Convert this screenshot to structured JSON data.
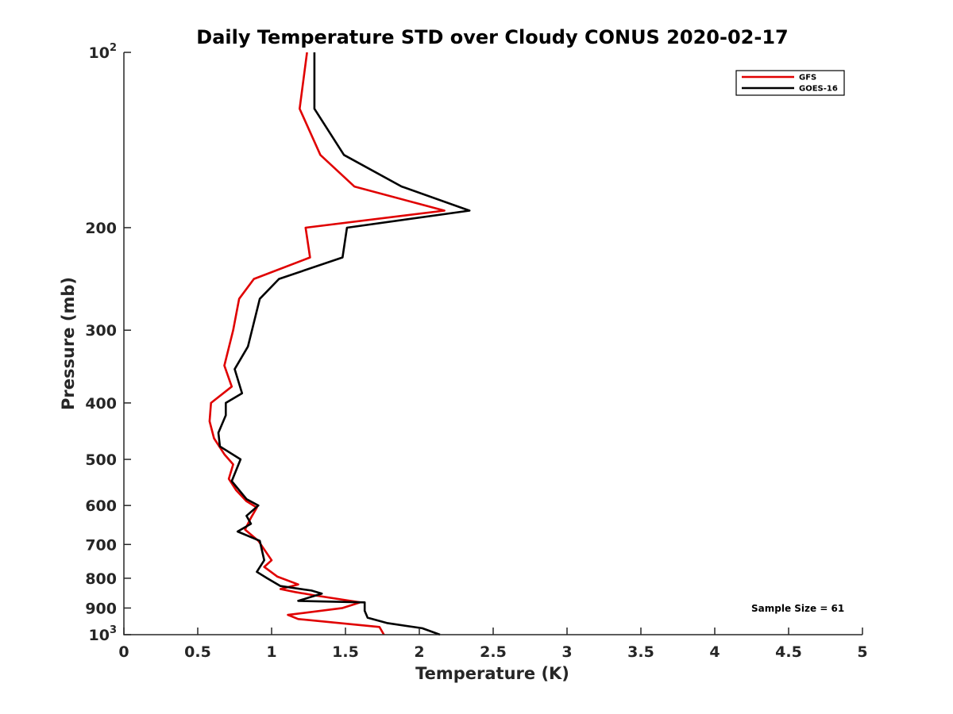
{
  "chart_data": {
    "type": "line",
    "title": "Daily Temperature STD over Cloudy CONUS 2020-02-17",
    "xlabel": "Temperature (K)",
    "ylabel": "Pressure (mb)",
    "xlim": [
      0,
      5
    ],
    "ylim": [
      100,
      1000
    ],
    "y_scale": "log",
    "y_reversed": true,
    "grid": false,
    "legend_position": "top-right",
    "x_ticks": [
      "0",
      "0.5",
      "1",
      "1.5",
      "2",
      "2.5",
      "3",
      "3.5",
      "4",
      "4.5",
      "5"
    ],
    "y_ticks": [
      {
        "value": 100,
        "base": "10",
        "exp": "2"
      },
      {
        "value": 200,
        "label": "200"
      },
      {
        "value": 300,
        "label": "300"
      },
      {
        "value": 400,
        "label": "400"
      },
      {
        "value": 500,
        "label": "500"
      },
      {
        "value": 600,
        "label": "600"
      },
      {
        "value": 700,
        "label": "700"
      },
      {
        "value": 800,
        "label": "800"
      },
      {
        "value": 900,
        "label": "900"
      },
      {
        "value": 1000,
        "base": "10",
        "exp": "3"
      }
    ],
    "annotation": "Sample Size = 61",
    "series": [
      {
        "name": "GFS",
        "color": "#e00000",
        "points": [
          [
            1.24,
            100
          ],
          [
            1.19,
            125
          ],
          [
            1.33,
            150
          ],
          [
            1.56,
            170
          ],
          [
            2.17,
            187
          ],
          [
            1.23,
            200
          ],
          [
            1.26,
            225
          ],
          [
            0.88,
            245
          ],
          [
            0.78,
            265
          ],
          [
            0.74,
            300
          ],
          [
            0.68,
            345
          ],
          [
            0.73,
            375
          ],
          [
            0.59,
            400
          ],
          [
            0.58,
            430
          ],
          [
            0.61,
            460
          ],
          [
            0.68,
            490
          ],
          [
            0.74,
            510
          ],
          [
            0.71,
            540
          ],
          [
            0.76,
            565
          ],
          [
            0.83,
            590
          ],
          [
            0.9,
            605
          ],
          [
            0.86,
            630
          ],
          [
            0.82,
            660
          ],
          [
            0.91,
            690
          ],
          [
            1.0,
            745
          ],
          [
            0.95,
            765
          ],
          [
            1.04,
            795
          ],
          [
            1.18,
            820
          ],
          [
            1.06,
            835
          ],
          [
            1.16,
            845
          ],
          [
            1.28,
            855
          ],
          [
            1.6,
            880
          ],
          [
            1.48,
            900
          ],
          [
            1.11,
            925
          ],
          [
            1.18,
            940
          ],
          [
            1.73,
            970
          ],
          [
            1.76,
            1000
          ]
        ]
      },
      {
        "name": "GOES-16",
        "color": "#000000",
        "points": [
          [
            1.29,
            100
          ],
          [
            1.29,
            125
          ],
          [
            1.49,
            150
          ],
          [
            1.88,
            170
          ],
          [
            2.34,
            187
          ],
          [
            1.51,
            200
          ],
          [
            1.48,
            225
          ],
          [
            1.05,
            245
          ],
          [
            0.92,
            265
          ],
          [
            0.84,
            320
          ],
          [
            0.75,
            350
          ],
          [
            0.8,
            385
          ],
          [
            0.69,
            400
          ],
          [
            0.69,
            420
          ],
          [
            0.64,
            450
          ],
          [
            0.65,
            475
          ],
          [
            0.79,
            500
          ],
          [
            0.73,
            545
          ],
          [
            0.83,
            585
          ],
          [
            0.91,
            600
          ],
          [
            0.83,
            625
          ],
          [
            0.86,
            645
          ],
          [
            0.77,
            665
          ],
          [
            0.92,
            690
          ],
          [
            0.95,
            745
          ],
          [
            0.9,
            780
          ],
          [
            0.97,
            800
          ],
          [
            1.06,
            825
          ],
          [
            1.27,
            840
          ],
          [
            1.34,
            850
          ],
          [
            1.18,
            875
          ],
          [
            1.63,
            880
          ],
          [
            1.63,
            910
          ],
          [
            1.65,
            935
          ],
          [
            1.78,
            955
          ],
          [
            2.02,
            975
          ],
          [
            2.14,
            1000
          ]
        ]
      }
    ]
  }
}
